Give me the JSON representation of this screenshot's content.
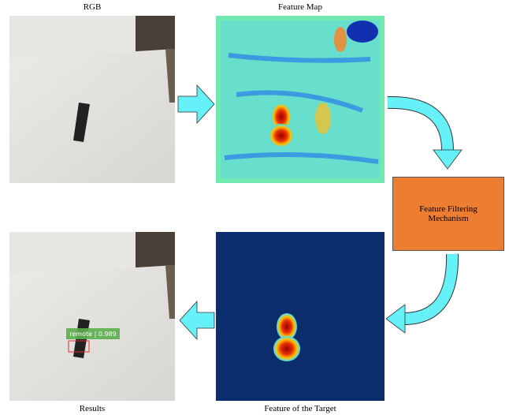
{
  "images": [
    {
      "caption": "RGB"
    },
    {
      "caption": "Feature Map"
    },
    {
      "caption": "Feature of the Target"
    },
    {
      "caption": "Results",
      "detection_label": "remote | 0.989"
    }
  ],
  "process": {
    "label": "Feature Filtering Mechanism"
  }
}
